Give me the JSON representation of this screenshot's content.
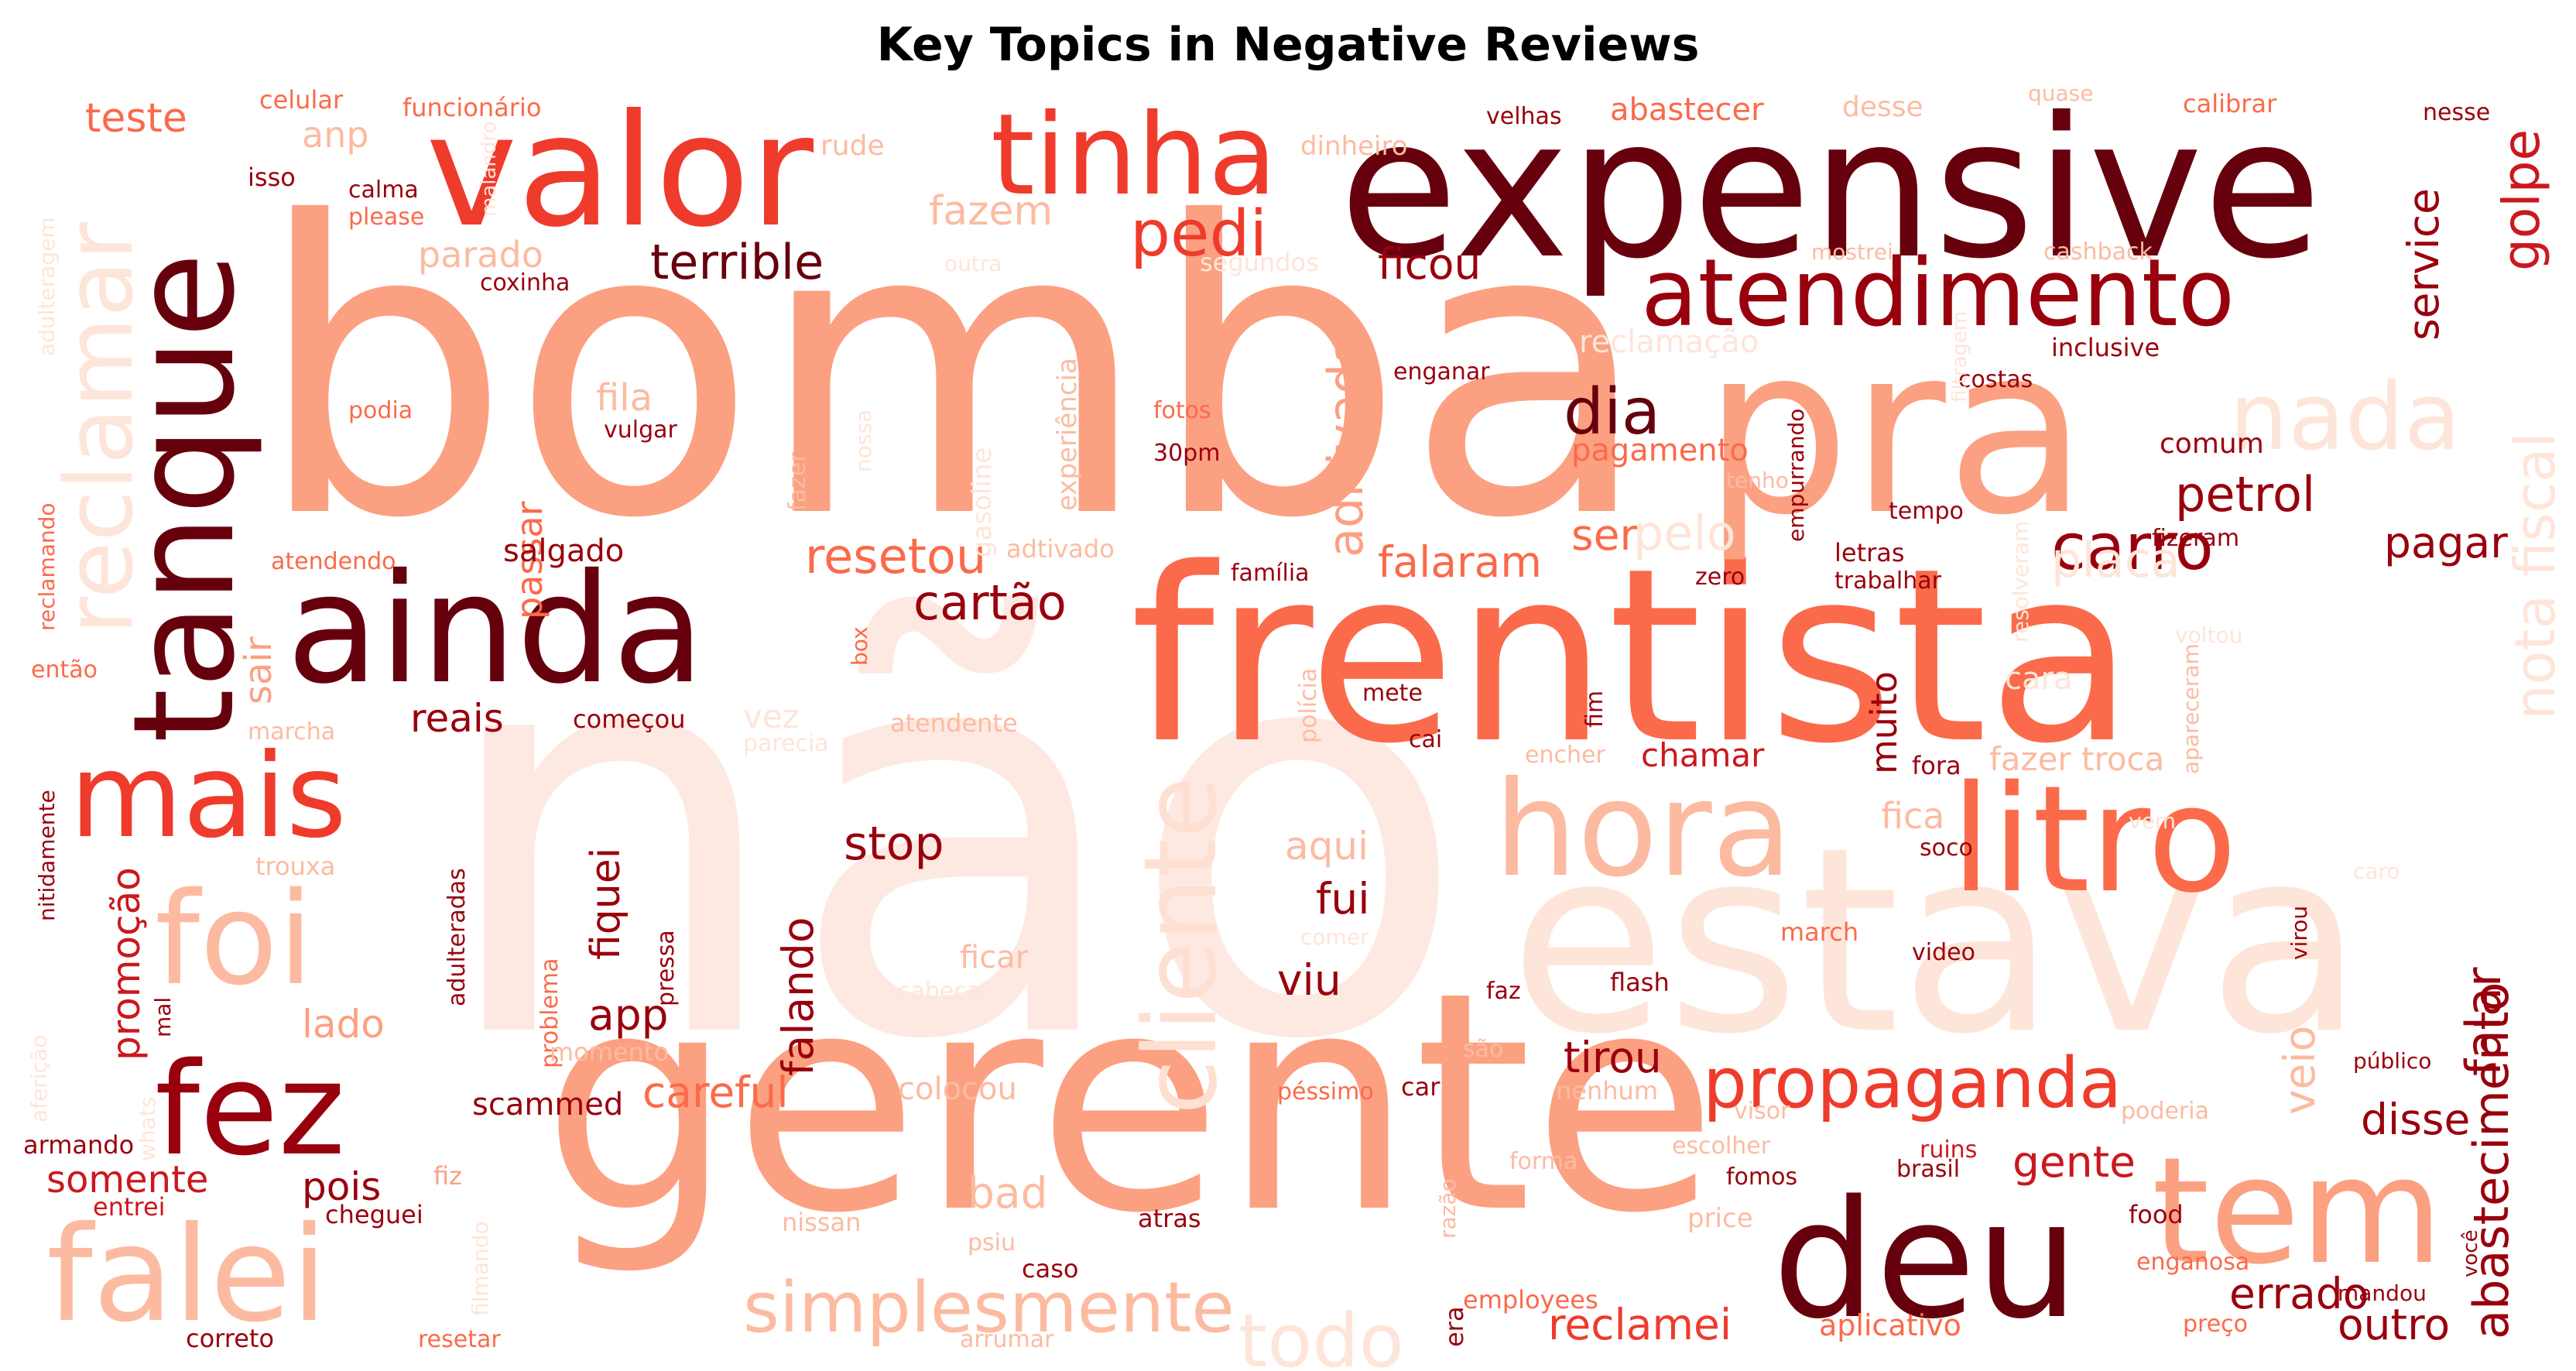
{
  "title": "Key Topics in Negative Reviews",
  "palette": {
    "c1": "#fee5d9",
    "c2": "#fcbba1",
    "c3": "#fc9272",
    "c4": "#fb6a4a",
    "c5": "#ef3b2c",
    "c6": "#cb181d",
    "c7": "#99000d",
    "c8": "#67000d"
  },
  "words": [
    {
      "text": "não",
      "weight": 1.0,
      "color": "#fee9e2"
    },
    {
      "text": "bomba",
      "weight": 0.98,
      "color": "#fca082"
    },
    {
      "text": "gerente",
      "weight": 0.86,
      "color": "#fca082"
    },
    {
      "text": "estava",
      "weight": 0.72,
      "color": "#fee5d9"
    },
    {
      "text": "frentista",
      "weight": 0.7,
      "color": "#fb6a4a"
    },
    {
      "text": "pra",
      "weight": 0.64,
      "color": "#fca082"
    },
    {
      "text": "expensive",
      "weight": 0.55,
      "color": "#67000d"
    },
    {
      "text": "valor",
      "weight": 0.47,
      "color": "#ef3b2c"
    },
    {
      "text": "deu",
      "weight": 0.46,
      "color": "#67000d"
    },
    {
      "text": "ainda",
      "weight": 0.42,
      "color": "#67000d"
    },
    {
      "text": "tanque",
      "weight": 0.4,
      "color": "#67000d"
    },
    {
      "text": "tem",
      "weight": 0.4,
      "color": "#fca082"
    },
    {
      "text": "litro",
      "weight": 0.4,
      "color": "#fb6a4a"
    },
    {
      "text": "hora",
      "weight": 0.37,
      "color": "#fcbba1"
    },
    {
      "text": "falei",
      "weight": 0.37,
      "color": "#fcbba1"
    },
    {
      "text": "fez",
      "weight": 0.36,
      "color": "#99000d"
    },
    {
      "text": "foi",
      "weight": 0.35,
      "color": "#fcbba1"
    },
    {
      "text": "mais",
      "weight": 0.33,
      "color": "#ef3b2c"
    },
    {
      "text": "tinha",
      "weight": 0.3,
      "color": "#ef3b2c"
    },
    {
      "text": "cliente",
      "weight": 0.28,
      "color": "#fee0d2"
    },
    {
      "text": "atendimento",
      "weight": 0.27,
      "color": "#99000d"
    },
    {
      "text": "reclamar",
      "weight": 0.26,
      "color": "#fee5d9"
    },
    {
      "text": "nada",
      "weight": 0.26,
      "color": "#fee5d9"
    },
    {
      "text": "propaganda",
      "weight": 0.2,
      "color": "#ef3b2c"
    },
    {
      "text": "simplesmente",
      "weight": 0.2,
      "color": "#fcbba1"
    },
    {
      "text": "todo",
      "weight": 0.2,
      "color": "#fee5d9"
    },
    {
      "text": "pedi",
      "weight": 0.18,
      "color": "#ef3b2c"
    },
    {
      "text": "carro",
      "weight": 0.18,
      "color": "#99000d"
    },
    {
      "text": "dia",
      "weight": 0.18,
      "color": "#67000d"
    },
    {
      "text": "nota fiscal",
      "weight": 0.17,
      "color": "#fee5d9"
    },
    {
      "text": "golpe",
      "weight": 0.16,
      "color": "#cb181d"
    },
    {
      "text": "aditivada",
      "weight": 0.15,
      "color": "#fca082"
    },
    {
      "text": "abastecimento",
      "weight": 0.15,
      "color": "#99000d"
    },
    {
      "text": "falar",
      "weight": 0.15,
      "color": "#99000d"
    },
    {
      "text": "terrible",
      "weight": 0.15,
      "color": "#67000d"
    },
    {
      "text": "petrol",
      "weight": 0.15,
      "color": "#99000d"
    },
    {
      "text": "resetou",
      "weight": 0.15,
      "color": "#fb6a4a"
    },
    {
      "text": "cartão",
      "weight": 0.15,
      "color": "#99000d"
    },
    {
      "text": "placa",
      "weight": 0.15,
      "color": "#fee5d9"
    },
    {
      "text": "pelo",
      "weight": 0.14,
      "color": "#fee5d9"
    },
    {
      "text": "falaram",
      "weight": 0.14,
      "color": "#fb6a4a"
    },
    {
      "text": "service",
      "weight": 0.13,
      "color": "#99000d"
    },
    {
      "text": "reclamei",
      "weight": 0.13,
      "color": "#ef3b2c"
    },
    {
      "text": "errado",
      "weight": 0.13,
      "color": "#99000d"
    },
    {
      "text": "outro",
      "weight": 0.13,
      "color": "#99000d"
    },
    {
      "text": "gente",
      "weight": 0.13,
      "color": "#cb181d"
    },
    {
      "text": "pagar",
      "weight": 0.12,
      "color": "#99000d"
    },
    {
      "text": "careful",
      "weight": 0.12,
      "color": "#fb6a4a"
    },
    {
      "text": "tirou",
      "weight": 0.12,
      "color": "#99000d"
    },
    {
      "text": "bad",
      "weight": 0.12,
      "color": "#fcbba1"
    },
    {
      "text": "disse",
      "weight": 0.12,
      "color": "#99000d"
    },
    {
      "text": "ser",
      "weight": 0.12,
      "color": "#fb6a4a"
    },
    {
      "text": "ficou",
      "weight": 0.12,
      "color": "#99000d"
    },
    {
      "text": "falando",
      "weight": 0.12,
      "color": "#99000d"
    },
    {
      "text": "veio",
      "weight": 0.12,
      "color": "#fcbba1"
    },
    {
      "text": "fiquei",
      "weight": 0.11,
      "color": "#99000d"
    },
    {
      "text": "fazem",
      "weight": 0.11,
      "color": "#fcbba1"
    },
    {
      "text": "stop",
      "weight": 0.11,
      "color": "#99000d"
    },
    {
      "text": "fui",
      "weight": 0.11,
      "color": "#99000d"
    },
    {
      "text": "viu",
      "weight": 0.11,
      "color": "#99000d"
    },
    {
      "text": "aqui",
      "weight": 0.1,
      "color": "#fcbba1"
    },
    {
      "text": "app",
      "weight": 0.1,
      "color": "#99000d"
    },
    {
      "text": "promoção",
      "weight": 0.1,
      "color": "#cb181d"
    },
    {
      "text": "lado",
      "weight": 0.1,
      "color": "#fca082"
    },
    {
      "text": "pois",
      "weight": 0.1,
      "color": "#99000d"
    },
    {
      "text": "reais",
      "weight": 0.1,
      "color": "#99000d"
    },
    {
      "text": "somente",
      "weight": 0.09,
      "color": "#cb181d"
    },
    {
      "text": "sair",
      "weight": 0.09,
      "color": "#fca082"
    },
    {
      "text": "passar",
      "weight": 0.09,
      "color": "#fb6a4a"
    },
    {
      "text": "fila",
      "weight": 0.09,
      "color": "#fcbba1"
    },
    {
      "text": "muito",
      "weight": 0.09,
      "color": "#99000d"
    },
    {
      "text": "teste",
      "weight": 0.09,
      "color": "#fb6a4a"
    },
    {
      "text": "parado",
      "weight": 0.08,
      "color": "#fcbba1"
    },
    {
      "text": "anp",
      "weight": 0.08,
      "color": "#fcbba1"
    },
    {
      "text": "fica",
      "weight": 0.08,
      "color": "#fcbba1"
    },
    {
      "text": "fazer troca",
      "weight": 0.08,
      "color": "#fcbba1"
    },
    {
      "text": "chamar",
      "weight": 0.08,
      "color": "#cb181d"
    },
    {
      "text": "vez",
      "weight": 0.08,
      "color": "#fee5d9"
    },
    {
      "text": "cara",
      "weight": 0.07,
      "color": "#fee5d9"
    },
    {
      "text": "salgado",
      "weight": 0.07,
      "color": "#99000d"
    },
    {
      "text": "colocou",
      "weight": 0.07,
      "color": "#fcbba1"
    },
    {
      "text": "ficar",
      "weight": 0.07,
      "color": "#fcbba1"
    },
    {
      "text": "scammed",
      "weight": 0.07,
      "color": "#99000d"
    },
    {
      "text": "pagamento",
      "weight": 0.07,
      "color": "#fb6a4a"
    },
    {
      "text": "reclamação",
      "weight": 0.07,
      "color": "#fee5d9"
    },
    {
      "text": "abastecer",
      "weight": 0.07,
      "color": "#fb6a4a"
    },
    {
      "text": "comum",
      "weight": 0.06,
      "color": "#99000d"
    },
    {
      "text": "fizeram",
      "weight": 0.06,
      "color": "#99000d"
    },
    {
      "text": "experiência",
      "weight": 0.06,
      "color": "#fcbba1"
    },
    {
      "text": "gasoline",
      "weight": 0.06,
      "color": "#fee5d9"
    },
    {
      "text": "pressa",
      "weight": 0.05,
      "color": "#99000d"
    },
    {
      "text": "adulteradas",
      "weight": 0.05,
      "color": "#99000d"
    },
    {
      "text": "problema",
      "weight": 0.05,
      "color": "#fb6a4a"
    },
    {
      "text": "momento",
      "weight": 0.05,
      "color": "#fcbba1"
    },
    {
      "text": "cheguei",
      "weight": 0.05,
      "color": "#99000d"
    },
    {
      "text": "fiz",
      "weight": 0.05,
      "color": "#fca082"
    },
    {
      "text": "entrei",
      "weight": 0.05,
      "color": "#cb181d"
    },
    {
      "text": "armando",
      "weight": 0.05,
      "color": "#99000d"
    },
    {
      "text": "nitidamente",
      "weight": 0.05,
      "color": "#99000d"
    },
    {
      "text": "mal",
      "weight": 0.05,
      "color": "#99000d"
    },
    {
      "text": "então",
      "weight": 0.05,
      "color": "#fb6a4a"
    },
    {
      "text": "marcha",
      "weight": 0.05,
      "color": "#fcbba1"
    },
    {
      "text": "trouxa",
      "weight": 0.05,
      "color": "#fcbba1"
    },
    {
      "text": "começou",
      "weight": 0.05,
      "color": "#99000d"
    },
    {
      "text": "atendente",
      "weight": 0.05,
      "color": "#fcbba1"
    },
    {
      "text": "parecia",
      "weight": 0.05,
      "color": "#fee5d9"
    },
    {
      "text": "atendendo",
      "weight": 0.05,
      "color": "#fb6a4a"
    },
    {
      "text": "reclamando",
      "weight": 0.05,
      "color": "#fb6a4a"
    },
    {
      "text": "adulteragem",
      "weight": 0.05,
      "color": "#fee5d9"
    },
    {
      "text": "celular",
      "weight": 0.05,
      "color": "#fb6a4a"
    },
    {
      "text": "funcionário",
      "weight": 0.05,
      "color": "#fb6a4a"
    },
    {
      "text": "isso",
      "weight": 0.05,
      "color": "#99000d"
    },
    {
      "text": "calma",
      "weight": 0.05,
      "color": "#99000d"
    },
    {
      "text": "please",
      "weight": 0.05,
      "color": "#fb6a4a"
    },
    {
      "text": "coxinha",
      "weight": 0.05,
      "color": "#99000d"
    },
    {
      "text": "podia",
      "weight": 0.05,
      "color": "#fb6a4a"
    },
    {
      "text": "rude",
      "weight": 0.05,
      "color": "#fcbba1"
    },
    {
      "text": "dinheiro",
      "weight": 0.05,
      "color": "#fcbba1"
    },
    {
      "text": "segundos",
      "weight": 0.05,
      "color": "#fee5d9"
    },
    {
      "text": "outra",
      "weight": 0.05,
      "color": "#fee5d9"
    },
    {
      "text": "fotos",
      "weight": 0.05,
      "color": "#fb6a4a"
    },
    {
      "text": "30pm",
      "weight": 0.05,
      "color": "#99000d"
    },
    {
      "text": "vulgar",
      "weight": 0.05,
      "color": "#99000d"
    },
    {
      "text": "fazer",
      "weight": 0.05,
      "color": "#fcbba1"
    },
    {
      "text": "nossa",
      "weight": 0.05,
      "color": "#fee5d9"
    },
    {
      "text": "adtivado",
      "weight": 0.05,
      "color": "#fcbba1"
    },
    {
      "text": "box",
      "weight": 0.05,
      "color": "#fb6a4a"
    },
    {
      "text": "família",
      "weight": 0.05,
      "color": "#99000d"
    },
    {
      "text": "polícia",
      "weight": 0.05,
      "color": "#fcbba1"
    },
    {
      "text": "mete",
      "weight": 0.05,
      "color": "#99000d"
    },
    {
      "text": "cai",
      "weight": 0.05,
      "color": "#99000d"
    },
    {
      "text": "enganar",
      "weight": 0.05,
      "color": "#99000d"
    },
    {
      "text": "velhas",
      "weight": 0.05,
      "color": "#99000d"
    },
    {
      "text": "desse",
      "weight": 0.05,
      "color": "#fcbba1"
    },
    {
      "text": "quase",
      "weight": 0.05,
      "color": "#fcbba1"
    },
    {
      "text": "calibrar",
      "weight": 0.05,
      "color": "#fb6a4a"
    },
    {
      "text": "nesse",
      "weight": 0.05,
      "color": "#99000d"
    },
    {
      "text": "mostrei",
      "weight": 0.05,
      "color": "#fcbba1"
    },
    {
      "text": "cashback",
      "weight": 0.05,
      "color": "#fcbba1"
    },
    {
      "text": "inclusive",
      "weight": 0.05,
      "color": "#99000d"
    },
    {
      "text": "costas",
      "weight": 0.05,
      "color": "#99000d"
    },
    {
      "text": "empurrando",
      "weight": 0.05,
      "color": "#99000d"
    },
    {
      "text": "tenho",
      "weight": 0.05,
      "color": "#fcbba1"
    },
    {
      "text": "tempo",
      "weight": 0.05,
      "color": "#99000d"
    },
    {
      "text": "letras",
      "weight": 0.05,
      "color": "#99000d"
    },
    {
      "text": "trabalhar",
      "weight": 0.05,
      "color": "#99000d"
    },
    {
      "text": "zero",
      "weight": 0.05,
      "color": "#99000d"
    },
    {
      "text": "resolveram",
      "weight": 0.05,
      "color": "#fee5d9"
    },
    {
      "text": "apareceram",
      "weight": 0.05,
      "color": "#fcbba1"
    },
    {
      "text": "voltou",
      "weight": 0.05,
      "color": "#fee5d9"
    },
    {
      "text": "fim",
      "weight": 0.05,
      "color": "#99000d"
    },
    {
      "text": "encher",
      "weight": 0.05,
      "color": "#fcbba1"
    },
    {
      "text": "fora",
      "weight": 0.05,
      "color": "#99000d"
    },
    {
      "text": "soco",
      "weight": 0.05,
      "color": "#99000d"
    },
    {
      "text": "vem",
      "weight": 0.05,
      "color": "#fee5d9"
    },
    {
      "text": "caro",
      "weight": 0.05,
      "color": "#fee5d9"
    },
    {
      "text": "virou",
      "weight": 0.05,
      "color": "#99000d"
    },
    {
      "text": "video",
      "weight": 0.05,
      "color": "#99000d"
    },
    {
      "text": "march",
      "weight": 0.05,
      "color": "#fb6a4a"
    },
    {
      "text": "flash",
      "weight": 0.05,
      "color": "#99000d"
    },
    {
      "text": "faz",
      "weight": 0.05,
      "color": "#99000d"
    },
    {
      "text": "comer",
      "weight": 0.05,
      "color": "#fee5d9"
    },
    {
      "text": "cabeça",
      "weight": 0.05,
      "color": "#fee5d9"
    },
    {
      "text": "são",
      "weight": 0.05,
      "color": "#fcbba1"
    },
    {
      "text": "péssimo",
      "weight": 0.05,
      "color": "#fb6a4a"
    },
    {
      "text": "car",
      "weight": 0.05,
      "color": "#99000d"
    },
    {
      "text": "nenhum",
      "weight": 0.05,
      "color": "#fcbba1"
    },
    {
      "text": "visor",
      "weight": 0.05,
      "color": "#fcbba1"
    },
    {
      "text": "escolher",
      "weight": 0.05,
      "color": "#fcbba1"
    },
    {
      "text": "ruins",
      "weight": 0.05,
      "color": "#cb181d"
    },
    {
      "text": "poderia",
      "weight": 0.05,
      "color": "#fcbba1"
    },
    {
      "text": "público",
      "weight": 0.05,
      "color": "#99000d"
    },
    {
      "text": "forma",
      "weight": 0.05,
      "color": "#fcbba1"
    },
    {
      "text": "fomos",
      "weight": 0.05,
      "color": "#99000d"
    },
    {
      "text": "brasil",
      "weight": 0.05,
      "color": "#99000d"
    },
    {
      "text": "razão",
      "weight": 0.05,
      "color": "#fcbba1"
    },
    {
      "text": "price",
      "weight": 0.05,
      "color": "#fcbba1"
    },
    {
      "text": "food",
      "weight": 0.05,
      "color": "#99000d"
    },
    {
      "text": "enganosa",
      "weight": 0.05,
      "color": "#fb6a4a"
    },
    {
      "text": "você",
      "weight": 0.05,
      "color": "#99000d"
    },
    {
      "text": "mandou",
      "weight": 0.05,
      "color": "#99000d"
    },
    {
      "text": "preço",
      "weight": 0.05,
      "color": "#fb6a4a"
    },
    {
      "text": "aplicativo",
      "weight": 0.05,
      "color": "#fb6a4a"
    },
    {
      "text": "employees",
      "weight": 0.05,
      "color": "#fb6a4a"
    },
    {
      "text": "era",
      "weight": 0.05,
      "color": "#99000d"
    },
    {
      "text": "caso",
      "weight": 0.05,
      "color": "#99000d"
    },
    {
      "text": "atras",
      "weight": 0.05,
      "color": "#99000d"
    },
    {
      "text": "psiu",
      "weight": 0.05,
      "color": "#fcbba1"
    },
    {
      "text": "nissan",
      "weight": 0.05,
      "color": "#fcbba1"
    },
    {
      "text": "arrumar",
      "weight": 0.05,
      "color": "#fcbba1"
    },
    {
      "text": "resetar",
      "weight": 0.05,
      "color": "#fb6a4a"
    },
    {
      "text": "correto",
      "weight": 0.05,
      "color": "#99000d"
    },
    {
      "text": "filmando",
      "weight": 0.05,
      "color": "#fee5d9"
    },
    {
      "text": "aferição",
      "weight": 0.05,
      "color": "#fee5d9"
    },
    {
      "text": "whats",
      "weight": 0.05,
      "color": "#fee5d9"
    },
    {
      "text": "malandro",
      "weight": 0.05,
      "color": "#fee5d9"
    },
    {
      "text": "filtragem",
      "weight": 0.05,
      "color": "#fee5d9"
    }
  ]
}
